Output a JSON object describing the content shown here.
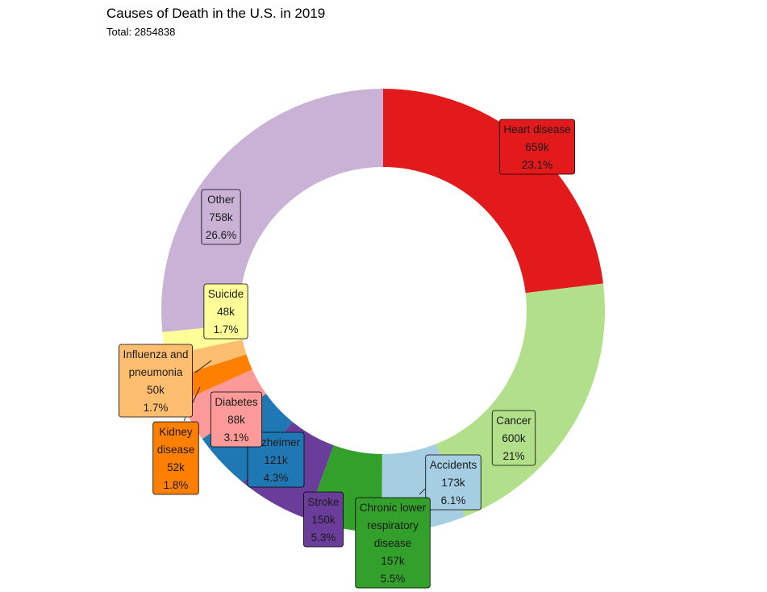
{
  "chart_data": {
    "type": "pie",
    "donut": true,
    "title": "Causes of Death in the U.S. in 2019",
    "subtitle": "Total: 2854838",
    "slices": [
      {
        "name": "Heart disease",
        "value_label": "659k",
        "pct_label": "23.1%",
        "pct": 23.1,
        "color": "#e31a1c"
      },
      {
        "name": "Cancer",
        "value_label": "600k",
        "pct_label": "21%",
        "pct": 21.0,
        "color": "#b2df8a"
      },
      {
        "name": "Accidents",
        "value_label": "173k",
        "pct_label": "6.1%",
        "pct": 6.1,
        "color": "#a6cee3"
      },
      {
        "name": "Chronic lower respiratory disease",
        "value_label": "157k",
        "pct_label": "5.5%",
        "pct": 5.5,
        "color": "#33a02c"
      },
      {
        "name": "Stroke",
        "value_label": "150k",
        "pct_label": "5.3%",
        "pct": 5.3,
        "color": "#6a3d9a"
      },
      {
        "name": "Alzheimer",
        "value_label": "121k",
        "pct_label": "4.3%",
        "pct": 4.3,
        "color": "#1f78b4"
      },
      {
        "name": "Diabetes",
        "value_label": "88k",
        "pct_label": "3.1%",
        "pct": 3.1,
        "color": "#fb9a99"
      },
      {
        "name": "Kidney disease",
        "value_label": "52k",
        "pct_label": "1.8%",
        "pct": 1.8,
        "color": "#ff7f00"
      },
      {
        "name": "Influenza and pneumonia",
        "value_label": "50k",
        "pct_label": "1.7%",
        "pct": 1.7,
        "color": "#fdbf6f"
      },
      {
        "name": "Suicide",
        "value_label": "48k",
        "pct_label": "1.7%",
        "pct": 1.7,
        "color": "#ffff99"
      },
      {
        "name": "Other",
        "value_label": "758k",
        "pct_label": "26.6%",
        "pct": 26.6,
        "color": "#cab2d6"
      }
    ]
  }
}
